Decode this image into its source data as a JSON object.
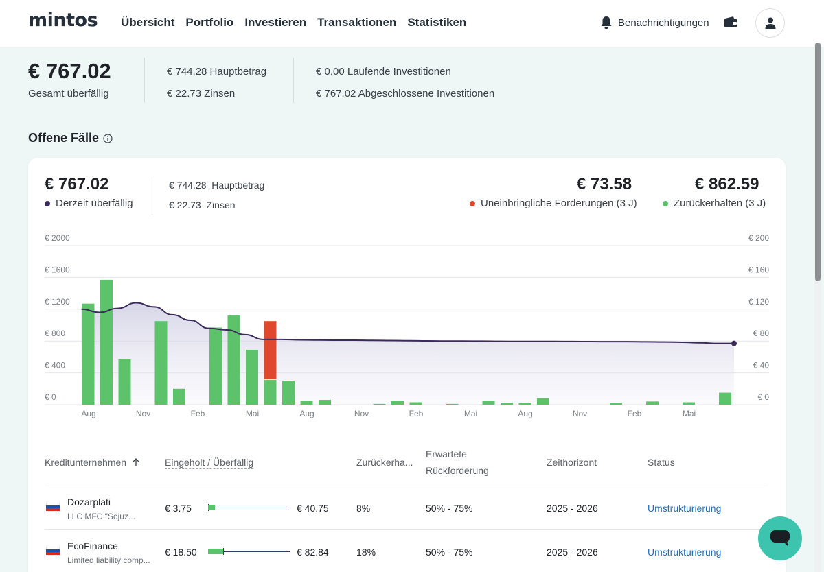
{
  "header": {
    "logo": "mintos",
    "nav": [
      "Übersicht",
      "Portfolio",
      "Investieren",
      "Transaktionen",
      "Statistiken"
    ],
    "notifications_label": "Benachrichtigungen"
  },
  "summary": {
    "total": "€ 767.02",
    "total_label": "Gesamt überfällig",
    "principal": "€ 744.28 Hauptbetrag",
    "interest": "€ 22.73 Zinsen",
    "ongoing": "€ 0.00  Laufende Investitionen",
    "closed": "€ 767.02  Abgeschlossene Investitionen"
  },
  "section": {
    "title": "Offene Fälle"
  },
  "card": {
    "overdue_value": "€ 767.02",
    "overdue_label": "Derzeit überfällig",
    "principal_amount": "€ 744.28",
    "principal_label": "Hauptbetrag",
    "interest_amount": "€ 22.73",
    "interest_label": "Zinsen",
    "bad_debt_value": "€ 73.58",
    "bad_debt_label": "Uneinbringliche Forderungen (3 J)",
    "recovered_value": "€ 862.59",
    "recovered_label": "Zurückerhalten (3 J)",
    "colors": {
      "overdue": "#3b2a5c",
      "bad_debt": "#e0482e",
      "recovered": "#5cc36a"
    }
  },
  "chart_data": {
    "type": "bar",
    "left_axis": {
      "ticks": [
        "€ 0",
        "€ 400",
        "€ 800",
        "€ 1200",
        "€ 1600",
        "€ 2000"
      ],
      "ylim": [
        0,
        2000
      ]
    },
    "right_axis": {
      "ticks": [
        "€ 0",
        "€ 40",
        "€ 80",
        "€ 120",
        "€ 160",
        "€ 200"
      ],
      "ylim": [
        0,
        200
      ]
    },
    "x_tick_labels": [
      "Aug",
      "Nov",
      "Feb",
      "Mai",
      "Aug",
      "Nov",
      "Feb",
      "Mai",
      "Aug",
      "Nov",
      "Feb",
      "Mai"
    ],
    "series": [
      {
        "name": "Zurückerhalten (3 J)",
        "axis": "right",
        "values": [
          127,
          157,
          57,
          0,
          105,
          20,
          0,
          97,
          112,
          69,
          31,
          30,
          5,
          6,
          0,
          0,
          1,
          5,
          3,
          0,
          1,
          0,
          5,
          2,
          2,
          8,
          0,
          0,
          0,
          2,
          0,
          4,
          0,
          3,
          0,
          15
        ]
      },
      {
        "name": "Uneinbringliche Forderungen (3 J)",
        "axis": "right",
        "values": [
          0,
          0,
          0,
          0,
          0,
          0,
          0,
          0,
          0,
          0,
          74,
          0,
          0,
          0,
          0,
          0,
          0,
          0,
          0,
          0,
          0,
          0,
          0,
          0,
          0,
          0,
          0,
          0,
          0,
          0,
          0,
          0,
          0,
          0,
          0,
          0
        ]
      },
      {
        "name": "Derzeit überfällig",
        "axis": "left",
        "type": "line",
        "values": [
          1200,
          1160,
          1210,
          1280,
          1230,
          1130,
          1060,
          960,
          940,
          880,
          820,
          820,
          815,
          812,
          810,
          810,
          808,
          806,
          804,
          802,
          800,
          800,
          798,
          796,
          795,
          795,
          795,
          794,
          793,
          792,
          792,
          790,
          788,
          785,
          778,
          770
        ]
      }
    ],
    "grid": true
  },
  "table": {
    "headers": {
      "lender": "Kreditunternehmen",
      "recovered_overdue": "Eingeholt / Überfällig",
      "recovered": "Zurückerha...",
      "expected_1": "Erwartete",
      "expected_2": "Rückforderung",
      "horizon": "Zeithorizont",
      "status": "Status"
    },
    "rows": [
      {
        "name": "Dozarplati",
        "company": "LLC MFC \"Sojuz...",
        "recovered": "€ 3.75",
        "overdue": "€ 40.75",
        "recovered_pct": "8%",
        "recovered_fraction": 0.08,
        "expected": "50% - 75%",
        "horizon": "2025 - 2026",
        "status": "Umstrukturierung"
      },
      {
        "name": "EcoFinance",
        "company": "Limited liability comp...",
        "recovered": "€ 18.50",
        "overdue": "€ 82.84",
        "recovered_pct": "18%",
        "recovered_fraction": 0.18,
        "expected": "50% - 75%",
        "horizon": "2025 - 2026",
        "status": "Umstrukturierung"
      }
    ]
  }
}
